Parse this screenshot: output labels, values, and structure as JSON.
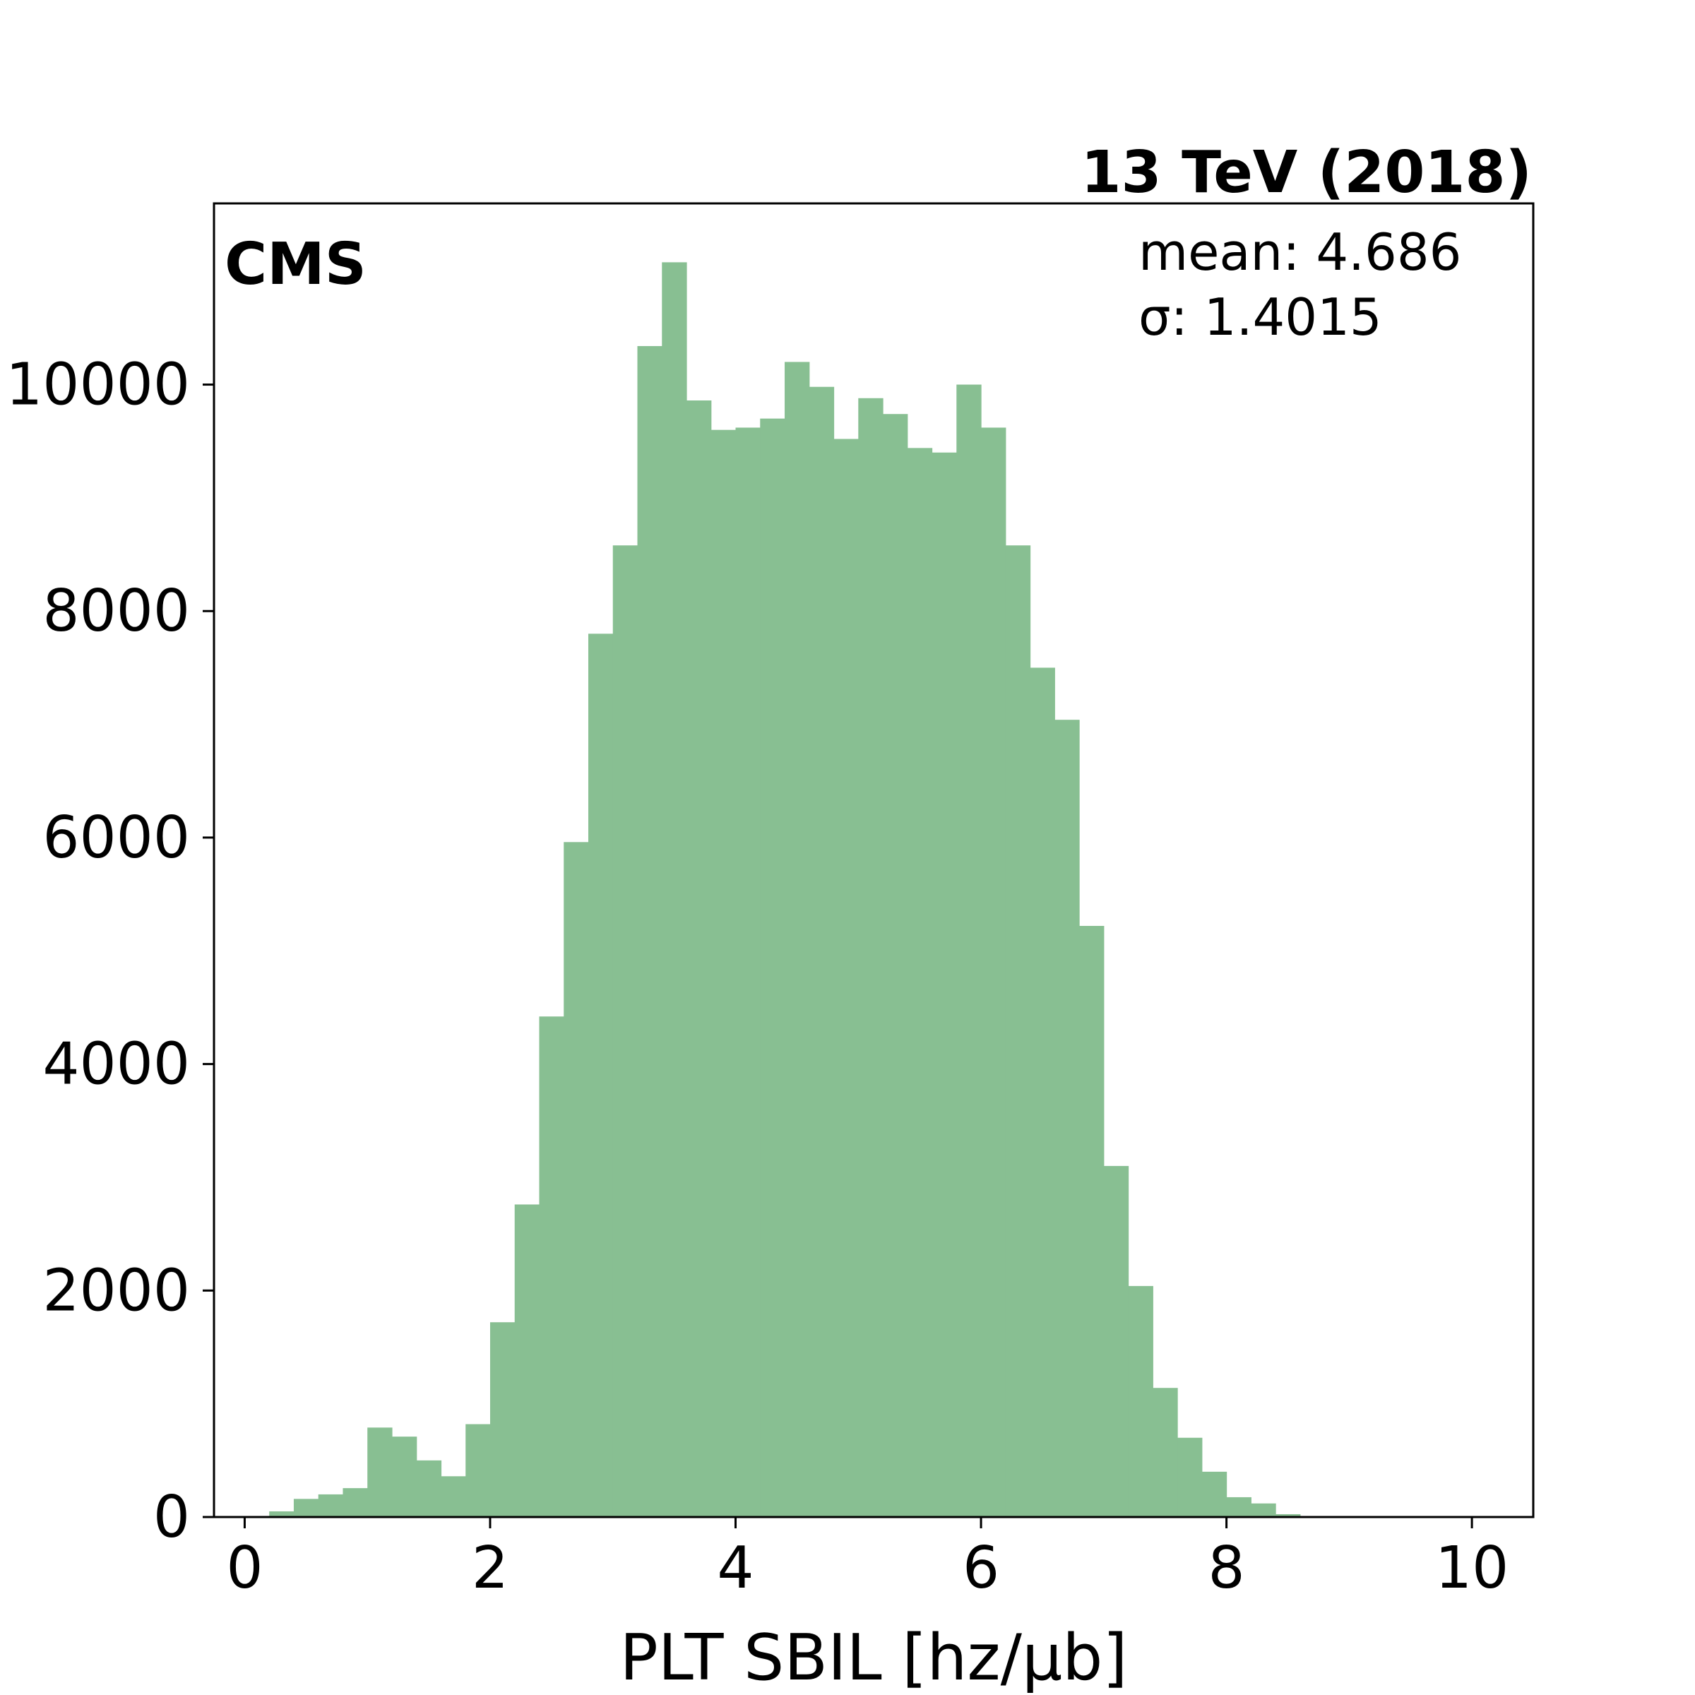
{
  "chart_data": {
    "type": "bar",
    "histogram": true,
    "xlabel": "PLT SBIL [hz/μb]",
    "ylabel": "",
    "experiment_label": "CMS",
    "energy_label": "13 TeV (2018)",
    "stats": {
      "mean": "mean: 4.686",
      "sigma": "σ: 1.4015"
    },
    "xlim": [
      -0.25,
      10.5
    ],
    "ylim": [
      0,
      11600
    ],
    "x_ticks": [
      0,
      2,
      4,
      6,
      8,
      10
    ],
    "y_ticks": [
      0,
      2000,
      4000,
      6000,
      8000,
      10000
    ],
    "bin_edges": [
      0.0,
      0.2,
      0.4,
      0.6,
      0.8,
      1.0,
      1.2,
      1.4,
      1.6,
      1.8,
      2.0,
      2.2,
      2.4,
      2.6,
      2.8,
      3.0,
      3.2,
      3.4,
      3.6,
      3.8,
      4.0,
      4.2,
      4.4,
      4.6,
      4.8,
      5.0,
      5.2,
      5.4,
      5.6,
      5.8,
      6.0,
      6.2,
      6.4,
      6.6,
      6.8,
      7.0,
      7.2,
      7.4,
      7.6,
      7.8,
      8.0,
      8.2,
      8.4,
      8.6,
      8.8,
      9.0,
      9.2,
      9.4,
      9.6,
      9.8,
      10.0
    ],
    "counts": [
      5,
      50,
      160,
      200,
      255,
      790,
      710,
      500,
      360,
      820,
      1720,
      2760,
      4420,
      5960,
      7800,
      8580,
      10340,
      11080,
      9860,
      9600,
      9620,
      9700,
      10200,
      9980,
      9520,
      9880,
      9740,
      9440,
      9400,
      10000,
      9620,
      8580,
      7500,
      7040,
      5220,
      3100,
      2040,
      1140,
      700,
      400,
      175,
      120,
      25,
      5,
      0,
      0,
      0,
      0,
      0,
      0
    ],
    "bar_color": "#88bf92",
    "grid": false,
    "legend": "none"
  }
}
